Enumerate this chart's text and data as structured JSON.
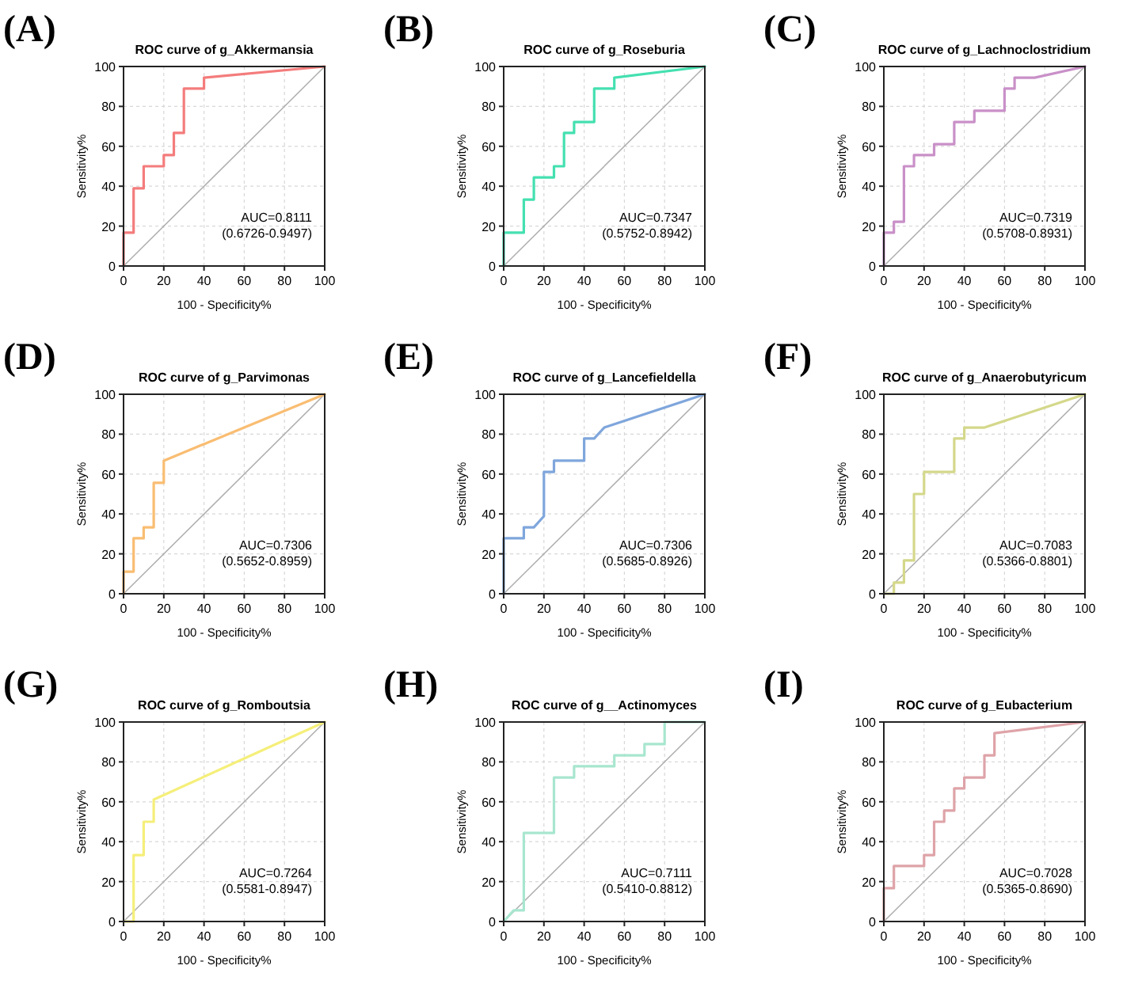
{
  "chart_data": [
    {
      "type": "line",
      "title": "ROC curve of g_Akkermansia",
      "xlabel": "100 - Specificity%",
      "ylabel": "Sensitivity%",
      "xlim": [
        0,
        100
      ],
      "ylim": [
        0,
        100
      ],
      "xticks": [
        0,
        20,
        40,
        60,
        80,
        100
      ],
      "yticks": [
        0,
        20,
        40,
        60,
        80,
        100
      ],
      "grid": true,
      "annotations": [
        "(A)",
        "AUC=0.8111",
        "(0.6726-0.9497)"
      ],
      "series": [
        {
          "color": "#f47c7c",
          "x": [
            0,
            0,
            5,
            5,
            10,
            10,
            20,
            20,
            25,
            25,
            30,
            30,
            40,
            40,
            100
          ],
          "values": [
            0,
            16.7,
            16.7,
            38.9,
            38.9,
            50,
            50,
            55.6,
            55.6,
            66.7,
            66.7,
            88.9,
            88.9,
            94.4,
            100
          ]
        },
        {
          "color": "#b0b0b0",
          "x": [
            0,
            100
          ],
          "values": [
            0,
            100
          ]
        }
      ]
    },
    {
      "type": "line",
      "title": "ROC curve of g_Roseburia",
      "xlabel": "100 - Specificity%",
      "ylabel": "Sensitivity%",
      "xlim": [
        0,
        100
      ],
      "ylim": [
        0,
        100
      ],
      "xticks": [
        0,
        20,
        40,
        60,
        80,
        100
      ],
      "yticks": [
        0,
        20,
        40,
        60,
        80,
        100
      ],
      "grid": true,
      "annotations": [
        "(B)",
        "AUC=0.7347",
        "(0.5752-0.8942)"
      ],
      "series": [
        {
          "color": "#44e0b0",
          "x": [
            0,
            0,
            10,
            10,
            15,
            15,
            25,
            25,
            30,
            30,
            35,
            35,
            45,
            45,
            55,
            55,
            100
          ],
          "values": [
            0,
            16.7,
            16.7,
            33.3,
            33.3,
            44.4,
            44.4,
            50,
            50,
            66.7,
            66.7,
            72.2,
            72.2,
            88.9,
            88.9,
            94.4,
            100
          ]
        },
        {
          "color": "#b0b0b0",
          "x": [
            0,
            100
          ],
          "values": [
            0,
            100
          ]
        }
      ]
    },
    {
      "type": "line",
      "title": "ROC curve of g_Lachnoclostridium",
      "xlabel": "100 - Specificity%",
      "ylabel": "Sensitivity%",
      "xlim": [
        0,
        100
      ],
      "ylim": [
        0,
        100
      ],
      "xticks": [
        0,
        20,
        40,
        60,
        80,
        100
      ],
      "yticks": [
        0,
        20,
        40,
        60,
        80,
        100
      ],
      "grid": true,
      "annotations": [
        "(C)",
        "AUC=0.7319",
        "(0.5708-0.8931)"
      ],
      "series": [
        {
          "color": "#c990c8",
          "x": [
            0,
            0,
            5,
            5,
            10,
            10,
            15,
            15,
            25,
            25,
            35,
            35,
            45,
            45,
            60,
            60,
            65,
            65,
            75,
            100
          ],
          "values": [
            0,
            16.7,
            16.7,
            22.2,
            22.2,
            50,
            50,
            55.6,
            55.6,
            61.1,
            61.1,
            72.2,
            72.2,
            77.8,
            77.8,
            88.9,
            88.9,
            94.4,
            94.4,
            100
          ]
        },
        {
          "color": "#b0b0b0",
          "x": [
            0,
            100
          ],
          "values": [
            0,
            100
          ]
        }
      ]
    },
    {
      "type": "line",
      "title": "ROC curve of g_Parvimonas",
      "xlabel": "100 - Specificity%",
      "ylabel": "Sensitivity%",
      "xlim": [
        0,
        100
      ],
      "ylim": [
        0,
        100
      ],
      "xticks": [
        0,
        20,
        40,
        60,
        80,
        100
      ],
      "yticks": [
        0,
        20,
        40,
        60,
        80,
        100
      ],
      "grid": true,
      "annotations": [
        "(D)",
        "AUC=0.7306",
        "(0.5652-0.8959)"
      ],
      "series": [
        {
          "color": "#f9bd72",
          "x": [
            0,
            0,
            5,
            5,
            10,
            10,
            15,
            15,
            20,
            20,
            100
          ],
          "values": [
            0,
            11.1,
            11.1,
            27.8,
            27.8,
            33.3,
            33.3,
            55.6,
            55.6,
            66.7,
            100
          ]
        },
        {
          "color": "#b0b0b0",
          "x": [
            0,
            100
          ],
          "values": [
            0,
            100
          ]
        }
      ]
    },
    {
      "type": "line",
      "title": "ROC curve of g_Lancefieldella",
      "xlabel": "100 - Specificity%",
      "ylabel": "Sensitivity%",
      "xlim": [
        0,
        100
      ],
      "ylim": [
        0,
        100
      ],
      "xticks": [
        0,
        20,
        40,
        60,
        80,
        100
      ],
      "yticks": [
        0,
        20,
        40,
        60,
        80,
        100
      ],
      "grid": true,
      "annotations": [
        "(E)",
        "AUC=0.7306",
        "(0.5685-0.8926)"
      ],
      "series": [
        {
          "color": "#7fa6dc",
          "x": [
            0,
            0,
            10,
            10,
            15,
            20,
            20,
            25,
            25,
            40,
            40,
            45,
            50,
            100
          ],
          "values": [
            0,
            27.8,
            27.8,
            33.3,
            33.3,
            38.9,
            61.1,
            61.1,
            66.7,
            66.7,
            77.8,
            77.8,
            83.3,
            100
          ]
        },
        {
          "color": "#b0b0b0",
          "x": [
            0,
            100
          ],
          "values": [
            0,
            100
          ]
        }
      ]
    },
    {
      "type": "line",
      "title": "ROC curve of g_Anaerobutyricum",
      "xlabel": "100 - Specificity%",
      "ylabel": "Sensitivity%",
      "xlim": [
        0,
        100
      ],
      "ylim": [
        0,
        100
      ],
      "xticks": [
        0,
        20,
        40,
        60,
        80,
        100
      ],
      "yticks": [
        0,
        20,
        40,
        60,
        80,
        100
      ],
      "grid": true,
      "annotations": [
        "(F)",
        "AUC=0.7083",
        "(0.5366-0.8801)"
      ],
      "series": [
        {
          "color": "#d4d88a",
          "x": [
            0,
            5,
            5,
            10,
            10,
            15,
            15,
            20,
            20,
            35,
            35,
            40,
            40,
            50,
            100
          ],
          "values": [
            0,
            0,
            5.6,
            5.6,
            16.7,
            16.7,
            50,
            50,
            61.1,
            61.1,
            77.8,
            77.8,
            83.3,
            83.3,
            100
          ]
        },
        {
          "color": "#b0b0b0",
          "x": [
            0,
            100
          ],
          "values": [
            0,
            100
          ]
        }
      ]
    },
    {
      "type": "line",
      "title": "ROC curve of g_Romboutsia",
      "xlabel": "100 - Specificity%",
      "ylabel": "Sensitivity%",
      "xlim": [
        0,
        100
      ],
      "ylim": [
        0,
        100
      ],
      "xticks": [
        0,
        20,
        40,
        60,
        80,
        100
      ],
      "yticks": [
        0,
        20,
        40,
        60,
        80,
        100
      ],
      "grid": true,
      "annotations": [
        "(G)",
        "AUC=0.7264",
        "(0.5581-0.8947)"
      ],
      "series": [
        {
          "color": "#f5ef7a",
          "x": [
            0,
            5,
            5,
            10,
            10,
            15,
            15,
            100
          ],
          "values": [
            0,
            0,
            33.3,
            33.3,
            50,
            50,
            61.1,
            100
          ]
        },
        {
          "color": "#b0b0b0",
          "x": [
            0,
            100
          ],
          "values": [
            0,
            100
          ]
        }
      ]
    },
    {
      "type": "line",
      "title": "ROC curve of g__Actinomyces",
      "xlabel": "100 - Specificity%",
      "ylabel": "Sensitivity%",
      "xlim": [
        0,
        100
      ],
      "ylim": [
        0,
        100
      ],
      "xticks": [
        0,
        20,
        40,
        60,
        80,
        100
      ],
      "yticks": [
        0,
        20,
        40,
        60,
        80,
        100
      ],
      "grid": true,
      "annotations": [
        "(H)",
        "AUC=0.7111",
        "(0.5410-0.8812)"
      ],
      "series": [
        {
          "color": "#a8e6cf",
          "x": [
            0,
            5,
            10,
            10,
            25,
            25,
            35,
            35,
            55,
            55,
            70,
            70,
            80,
            80,
            100
          ],
          "values": [
            0,
            5.6,
            5.6,
            44.4,
            44.4,
            72.2,
            72.2,
            77.8,
            77.8,
            83.3,
            83.3,
            88.9,
            88.9,
            100,
            100
          ]
        },
        {
          "color": "#b0b0b0",
          "x": [
            0,
            100
          ],
          "values": [
            0,
            100
          ]
        }
      ]
    },
    {
      "type": "line",
      "title": "ROC curve of g_Eubacterium",
      "xlabel": "100 - Specificity%",
      "ylabel": "Sensitivity%",
      "xlim": [
        0,
        100
      ],
      "ylim": [
        0,
        100
      ],
      "xticks": [
        0,
        20,
        40,
        60,
        80,
        100
      ],
      "yticks": [
        0,
        20,
        40,
        60,
        80,
        100
      ],
      "grid": true,
      "annotations": [
        "(I)",
        "AUC=0.7028",
        "(0.5365-0.8690)"
      ],
      "series": [
        {
          "color": "#dea3a8",
          "x": [
            0,
            0,
            5,
            5,
            20,
            20,
            25,
            25,
            30,
            30,
            35,
            35,
            40,
            40,
            50,
            50,
            55,
            55,
            100
          ],
          "values": [
            0,
            16.7,
            16.7,
            27.8,
            27.8,
            33.3,
            33.3,
            50,
            50,
            55.6,
            55.6,
            66.7,
            66.7,
            72.2,
            72.2,
            83.3,
            83.3,
            94.4,
            100
          ]
        },
        {
          "color": "#b0b0b0",
          "x": [
            0,
            100
          ],
          "values": [
            0,
            100
          ]
        }
      ]
    }
  ]
}
